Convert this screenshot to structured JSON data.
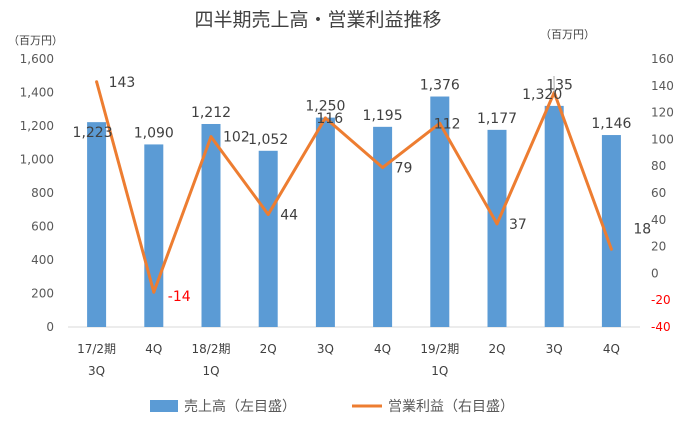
{
  "chart_data": {
    "type": "bar",
    "title": "四半期売上高・営業利益推移",
    "unit_left": "（百万円）",
    "unit_right": "（百万円）",
    "categories": [
      [
        "17/2期",
        "3Q"
      ],
      [
        "4Q"
      ],
      [
        "18/2期",
        "1Q"
      ],
      [
        "2Q"
      ],
      [
        "3Q"
      ],
      [
        "4Q"
      ],
      [
        "19/2期",
        "1Q"
      ],
      [
        "2Q"
      ],
      [
        "3Q"
      ],
      [
        "4Q"
      ]
    ],
    "series": [
      {
        "name": "売上高（左目盛）",
        "type": "bar",
        "axis": "left",
        "color": "#5b9bd5",
        "values": [
          1223,
          1090,
          1212,
          1052,
          1250,
          1195,
          1376,
          1177,
          1320,
          1146
        ],
        "labels": [
          "1,223",
          "1,090",
          "1,212",
          "1,052",
          "1,250",
          "1,195",
          "1,376",
          "1,177",
          "1,320",
          "1,146"
        ]
      },
      {
        "name": "営業利益（右目盛）",
        "type": "line",
        "axis": "right",
        "color": "#ed7d31",
        "values": [
          143,
          -14,
          102,
          44,
          116,
          79,
          112,
          37,
          135,
          18
        ],
        "labels": [
          "143",
          "-14",
          "102",
          "44",
          "116",
          "79",
          "112",
          "37",
          "135",
          "18"
        ]
      }
    ],
    "y_left": {
      "min": 0,
      "max": 1600,
      "step": 200,
      "tick_labels": [
        "0",
        "200",
        "400",
        "600",
        "800",
        "1,000",
        "1,200",
        "1,400",
        "1,600"
      ]
    },
    "y_right": {
      "min": -40,
      "max": 160,
      "step": 20,
      "tick_labels": [
        "-40",
        "-20",
        "0",
        "20",
        "40",
        "60",
        "80",
        "100",
        "120",
        "140",
        "160"
      ]
    },
    "negative_color": "#ff0000",
    "grid": false,
    "legend_position": "bottom"
  }
}
